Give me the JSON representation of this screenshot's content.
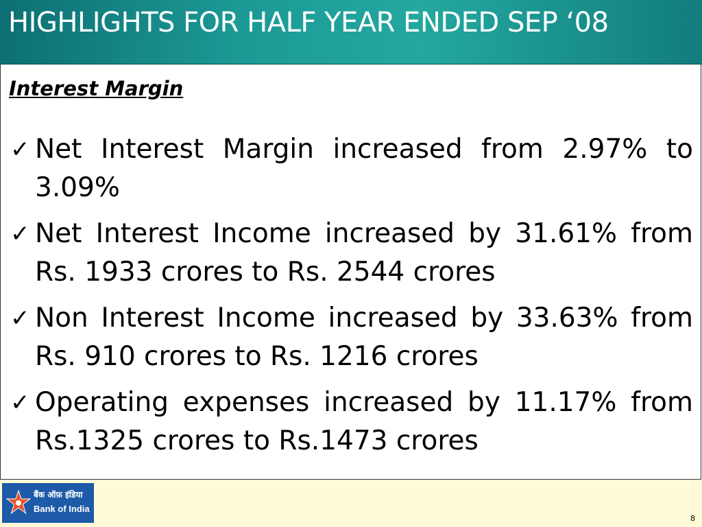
{
  "slide": {
    "title": "HIGHLIGHTS FOR HALF YEAR ENDED SEP ‘08",
    "section_heading": "Interest Margin",
    "bullets": [
      {
        "check": "✓",
        "text": "Net Interest Margin increased from 2.97% to 3.09%"
      },
      {
        "check": "✓",
        "text": "Net Interest Income increased by 31.61% from Rs. 1933 crores  to Rs. 2544 crores"
      },
      {
        "check": "✓",
        "text": "Non Interest Income increased by 33.63% from Rs. 910 crores to Rs. 1216 crores"
      },
      {
        "check": "✓",
        "text": "Operating expenses increased by 11.17% from Rs.1325 crores to    Rs.1473 crores"
      }
    ],
    "page_number": "8"
  },
  "footer": {
    "logo_hindi_text": "बैंक ऑफ़ इंडिया",
    "logo_text": "Bank of India",
    "logo_icon": "star-logo-icon"
  },
  "colors": {
    "title_bar": "#1c9a96",
    "title_text": "#ffffff",
    "footer_background": "#fffbd9",
    "logo_background": "#1d5aa8",
    "logo_star": "#e8542a"
  }
}
